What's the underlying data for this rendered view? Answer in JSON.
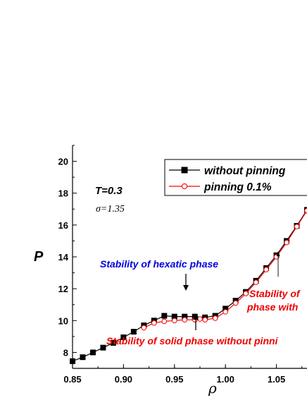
{
  "chart_data": {
    "type": "line",
    "xlabel": "ρ",
    "ylabel": "P",
    "xlim": [
      0.85,
      1.08
    ],
    "ylim": [
      7.0,
      21.0
    ],
    "xticks": [
      "0.85",
      "0.90",
      "0.95",
      "1.00",
      "1.05"
    ],
    "yticks": [
      "8",
      "10",
      "12",
      "14",
      "16",
      "18",
      "20"
    ],
    "grid": false,
    "legend_position": "top-right",
    "series": [
      {
        "name": "without pinning",
        "color": "#000000",
        "marker": "filled-square",
        "x": [
          0.85,
          0.86,
          0.87,
          0.88,
          0.89,
          0.9,
          0.91,
          0.92,
          0.93,
          0.94,
          0.95,
          0.96,
          0.97,
          0.98,
          0.99,
          1.0,
          1.01,
          1.02,
          1.03,
          1.04,
          1.05,
          1.06,
          1.07,
          1.08
        ],
        "y": [
          7.45,
          7.7,
          8.0,
          8.3,
          8.6,
          8.95,
          9.3,
          9.7,
          10.0,
          10.3,
          10.25,
          10.25,
          10.25,
          10.2,
          10.3,
          10.75,
          11.25,
          11.8,
          12.5,
          13.3,
          14.1,
          15.0,
          15.95,
          16.95
        ]
      },
      {
        "name": "pinning 0.1%",
        "color": "#ff0000",
        "marker": "open-circle",
        "x": [
          0.92,
          0.93,
          0.94,
          0.95,
          0.96,
          0.97,
          0.975,
          0.98,
          0.99,
          1.0,
          1.01,
          1.02,
          1.03,
          1.04,
          1.05,
          1.06,
          1.07,
          1.08
        ],
        "y": [
          9.55,
          9.85,
          9.95,
          10.0,
          10.05,
          10.05,
          10.1,
          10.05,
          10.15,
          10.55,
          11.1,
          11.7,
          12.4,
          13.2,
          14.0,
          14.9,
          15.9,
          16.9
        ]
      }
    ],
    "annotations": {
      "temperature": "T=0.3",
      "sigma": "σ=1.35",
      "hexatic": "Stability of hexatic phase",
      "solid_without": "Stability of solid phase without pinni",
      "solid_with_line1": "Stability of",
      "solid_with_line2": "phase with",
      "hexatic_color": "#0000dd",
      "solid_color": "#ee0000"
    }
  }
}
